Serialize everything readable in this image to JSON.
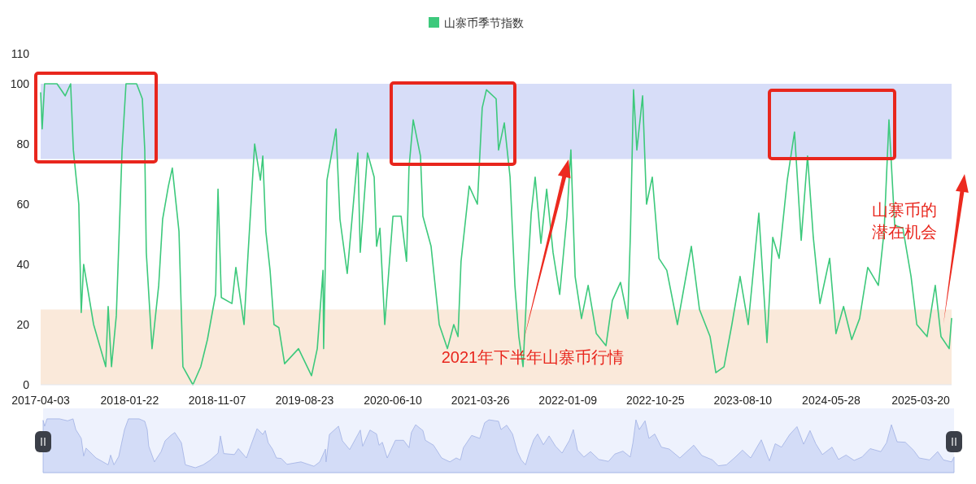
{
  "chart_data": {
    "type": "line",
    "legend": "top",
    "xlim": [
      "2017-04-03",
      "2025-06-30"
    ],
    "xticks": [
      "2017-04-03",
      "2018-01-22",
      "2018-11-07",
      "2019-08-23",
      "2020-06-10",
      "2021-03-26",
      "2022-01-09",
      "2022-10-25",
      "2023-08-10",
      "2024-05-28",
      "2025-03-20"
    ],
    "ylim": [
      0,
      110
    ],
    "yticks": [
      0,
      20,
      40,
      60,
      80,
      100,
      110
    ],
    "bands": [
      {
        "axis": "y",
        "from": 75,
        "to": 100,
        "color": "#d7ddf8"
      },
      {
        "axis": "y",
        "from": 0,
        "to": 25,
        "color": "#fae9da"
      }
    ],
    "annotations": [
      "2021年下半年山寨币行情",
      "山寨币的潜在机会"
    ],
    "x": [
      "2017-04-03",
      "2017-04-08",
      "2017-04-16",
      "2017-05-27",
      "2017-06-23",
      "2017-07-11",
      "2017-07-20",
      "2017-08-07",
      "2017-08-15",
      "2017-08-23",
      "2017-09-25",
      "2017-11-04",
      "2017-11-12",
      "2017-11-23",
      "2017-12-09",
      "2017-12-28",
      "2018-01-10",
      "2018-02-14",
      "2018-03-05",
      "2018-03-13",
      "2018-03-18",
      "2018-04-06",
      "2018-04-28",
      "2018-05-11",
      "2018-05-30",
      "2018-06-12",
      "2018-07-04",
      "2018-07-17",
      "2018-08-19",
      "2018-09-14",
      "2018-10-06",
      "2018-11-02",
      "2018-11-10",
      "2018-11-21",
      "2018-12-26",
      "2019-01-08",
      "2019-02-04",
      "2019-02-17",
      "2019-03-11",
      "2019-03-30",
      "2019-04-07",
      "2019-04-17",
      "2019-05-01",
      "2019-05-14",
      "2019-05-30",
      "2019-06-18",
      "2019-08-03",
      "2019-09-15",
      "2019-10-04",
      "2019-10-23",
      "2019-10-25",
      "2019-11-05",
      "2019-12-05",
      "2019-12-18",
      "2020-01-11",
      "2020-02-15",
      "2020-02-23",
      "2020-03-18",
      "2020-04-09",
      "2020-04-17",
      "2020-04-28",
      "2020-05-14",
      "2020-06-10",
      "2020-07-07",
      "2020-07-25",
      "2020-08-02",
      "2020-08-16",
      "2020-09-09",
      "2020-09-17",
      "2020-10-14",
      "2020-11-10",
      "2020-12-07",
      "2020-12-28",
      "2021-01-11",
      "2021-01-21",
      "2021-02-17",
      "2021-03-16",
      "2021-04-01",
      "2021-04-15",
      "2021-05-17",
      "2021-05-25",
      "2021-06-13",
      "2021-07-02",
      "2021-07-18",
      "2021-07-31",
      "2021-08-14",
      "2021-08-27",
      "2021-09-10",
      "2021-09-23",
      "2021-10-12",
      "2021-10-31",
      "2021-11-21",
      "2021-12-13",
      "2022-01-06",
      "2022-01-19",
      "2022-02-02",
      "2022-02-23",
      "2022-03-17",
      "2022-04-13",
      "2022-05-15",
      "2022-06-05",
      "2022-07-02",
      "2022-07-26",
      "2022-08-04",
      "2022-08-14",
      "2022-08-25",
      "2022-09-13",
      "2022-09-26",
      "2022-10-15",
      "2022-11-06",
      "2022-12-02",
      "2023-01-06",
      "2023-02-21",
      "2023-03-20",
      "2023-04-24",
      "2023-05-13",
      "2023-06-09",
      "2023-07-05",
      "2023-08-01",
      "2023-08-28",
      "2023-10-02",
      "2023-10-29",
      "2023-11-17",
      "2023-12-08",
      "2024-01-04",
      "2024-01-28",
      "2024-02-19",
      "2024-03-11",
      "2024-03-30",
      "2024-04-21",
      "2024-05-23",
      "2024-06-13",
      "2024-07-08",
      "2024-08-04",
      "2024-08-30",
      "2024-09-26",
      "2024-10-31",
      "2024-11-19",
      "2024-12-05",
      "2024-12-24",
      "2025-01-20",
      "2025-02-16",
      "2025-03-07",
      "2025-04-10",
      "2025-05-07",
      "2025-05-26",
      "2025-06-22",
      "2025-06-30"
    ],
    "series": [
      {
        "name": "山寨币季节指数",
        "color": "#3dc97c",
        "values": [
          97,
          85,
          100,
          100,
          96,
          100,
          78,
          60,
          24,
          40,
          20,
          6,
          26,
          6,
          23,
          78,
          100,
          100,
          95,
          78,
          44,
          12,
          33,
          55,
          66,
          72,
          51,
          6,
          0,
          6,
          15,
          30,
          65,
          29,
          27,
          39,
          20,
          43,
          80,
          68,
          76,
          51,
          38,
          20,
          19,
          7,
          12,
          3,
          12,
          38,
          12,
          68,
          85,
          55,
          37,
          77,
          44,
          77,
          69,
          46,
          52,
          20,
          56,
          56,
          41,
          72,
          88,
          76,
          56,
          46,
          20,
          12,
          20,
          16,
          41,
          66,
          60,
          92,
          98,
          95,
          78,
          87,
          69,
          33,
          16,
          6,
          33,
          57,
          69,
          47,
          65,
          44,
          30,
          56,
          78,
          36,
          22,
          33,
          17,
          13,
          28,
          34,
          22,
          51,
          98,
          78,
          96,
          60,
          69,
          42,
          38,
          20,
          46,
          25,
          16,
          4,
          6,
          20,
          36,
          20,
          57,
          14,
          49,
          42,
          68,
          84,
          48,
          76,
          49,
          27,
          42,
          17,
          26,
          15,
          22,
          39,
          33,
          51,
          88,
          53,
          52,
          36,
          20,
          16,
          33,
          16,
          12,
          22
        ]
      }
    ]
  }
}
